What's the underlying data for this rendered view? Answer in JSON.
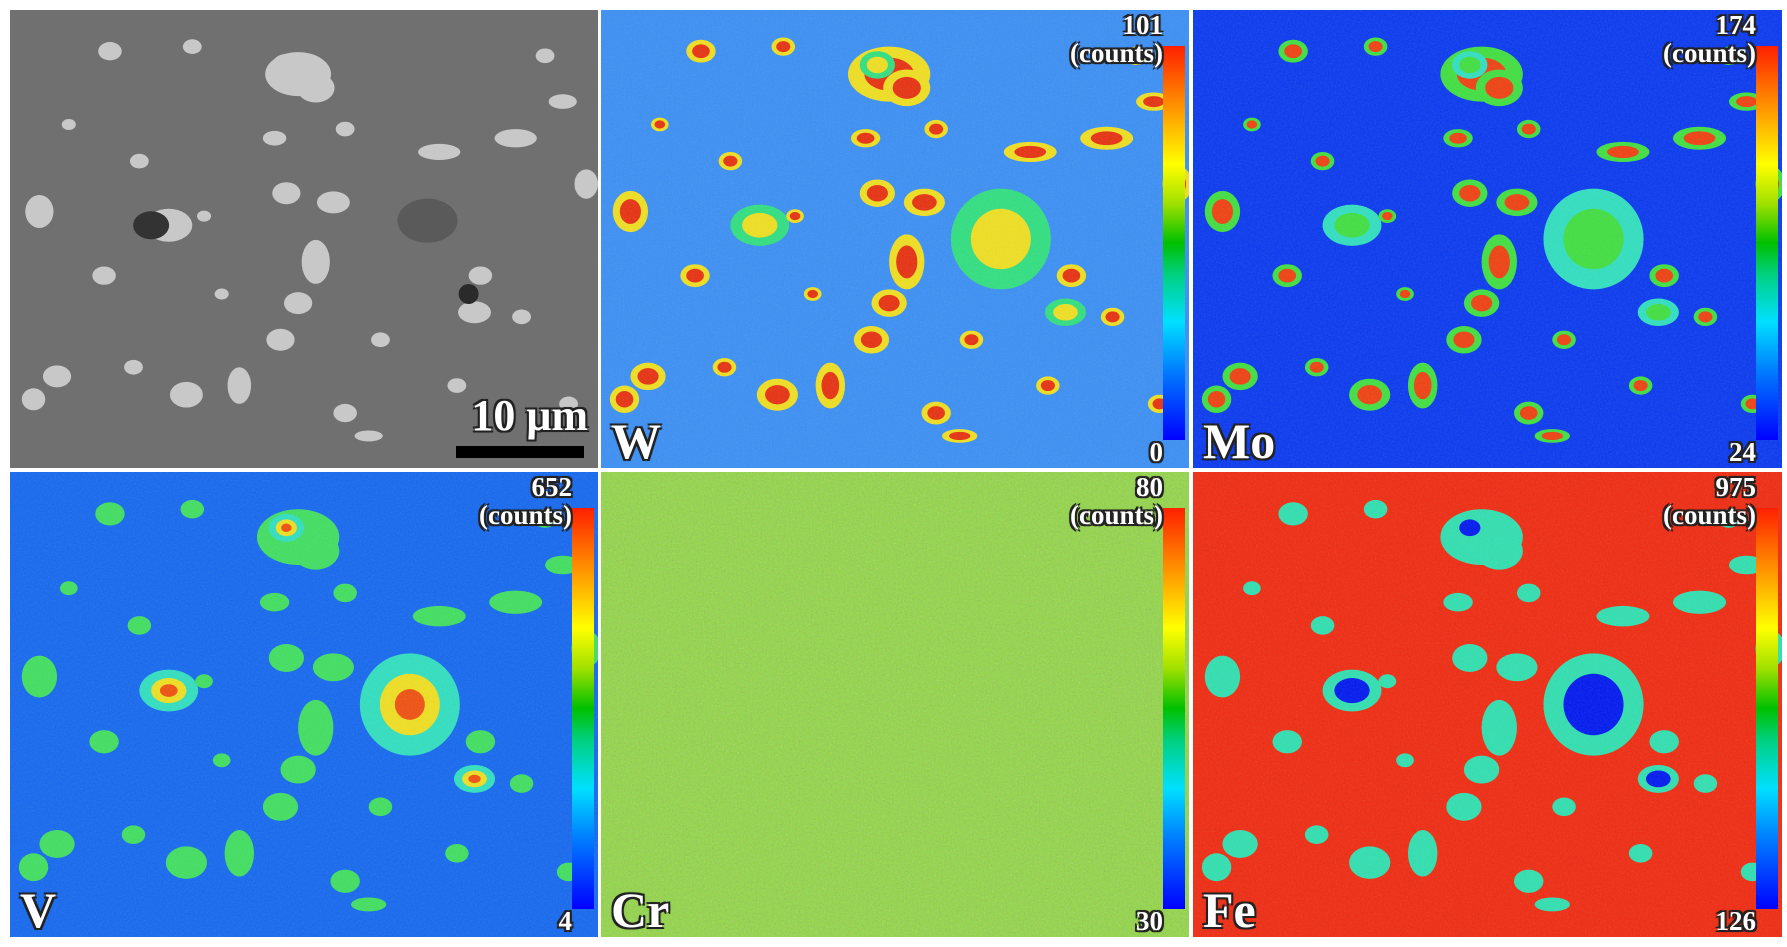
{
  "sem": {
    "scale_label": "10 μm"
  },
  "panels": [
    {
      "id": "W",
      "label": "W",
      "max": "101",
      "unit": "(counts)",
      "min": "0",
      "bg": "#3a8ff5",
      "particle": "#f0e020",
      "core": "#e83010",
      "rim": "#30e080"
    },
    {
      "id": "Mo",
      "label": "Mo",
      "max": "174",
      "unit": "(counts)",
      "min": "24",
      "bg": "#0838f0",
      "particle": "#40e040",
      "core": "#f04010",
      "rim": "#30e0c0"
    },
    {
      "id": "V",
      "label": "V",
      "max": "652",
      "unit": "(counts)",
      "min": "4",
      "bg": "#1468f0",
      "particle": "#30e0c0",
      "core": "#f05010",
      "rim": "#40e060"
    },
    {
      "id": "Cr",
      "label": "Cr",
      "max": "80",
      "unit": "(counts)",
      "min": "30",
      "bg": "#90d840",
      "particle": "#70d060",
      "core": "#60c8a0",
      "rim": "#a0e040"
    },
    {
      "id": "Fe",
      "label": "Fe",
      "max": "975",
      "unit": "(counts)",
      "min": "126",
      "bg": "#f02a10",
      "particle": "#30e0b0",
      "core": "#0018f0",
      "rim": "#40e080"
    }
  ],
  "colors": {
    "sem_bg": "#707070",
    "sem_particle": "#c8c8c8"
  }
}
